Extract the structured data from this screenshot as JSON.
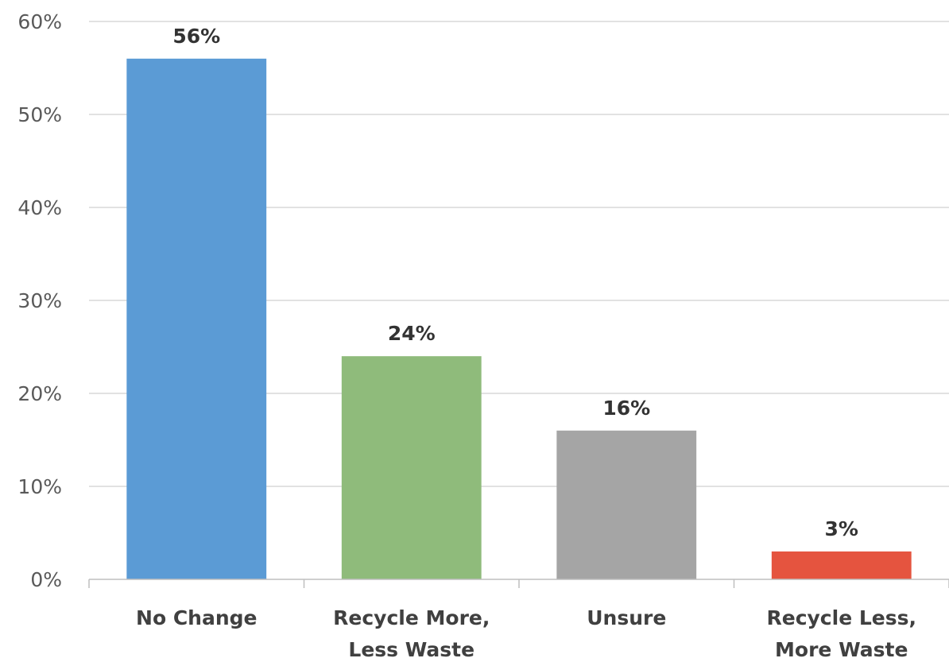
{
  "chart_data": {
    "type": "bar",
    "categories": [
      [
        "No Change"
      ],
      [
        "Recycle More,",
        "Less Waste"
      ],
      [
        "Unsure"
      ],
      [
        "Recycle Less,",
        "More Waste"
      ]
    ],
    "values": [
      56,
      24,
      16,
      3
    ],
    "data_labels": [
      "56%",
      "24%",
      "16%",
      "3%"
    ],
    "colors": [
      "#5b9bd5",
      "#8fbb7b",
      "#a5a5a5",
      "#e5543f"
    ],
    "ylim": [
      0,
      60
    ],
    "yticks": [
      0,
      10,
      20,
      30,
      40,
      50,
      60
    ],
    "ytick_labels": [
      "0%",
      "10%",
      "20%",
      "30%",
      "40%",
      "50%",
      "60%"
    ],
    "grid": true,
    "title": "",
    "xlabel": "",
    "ylabel": ""
  }
}
